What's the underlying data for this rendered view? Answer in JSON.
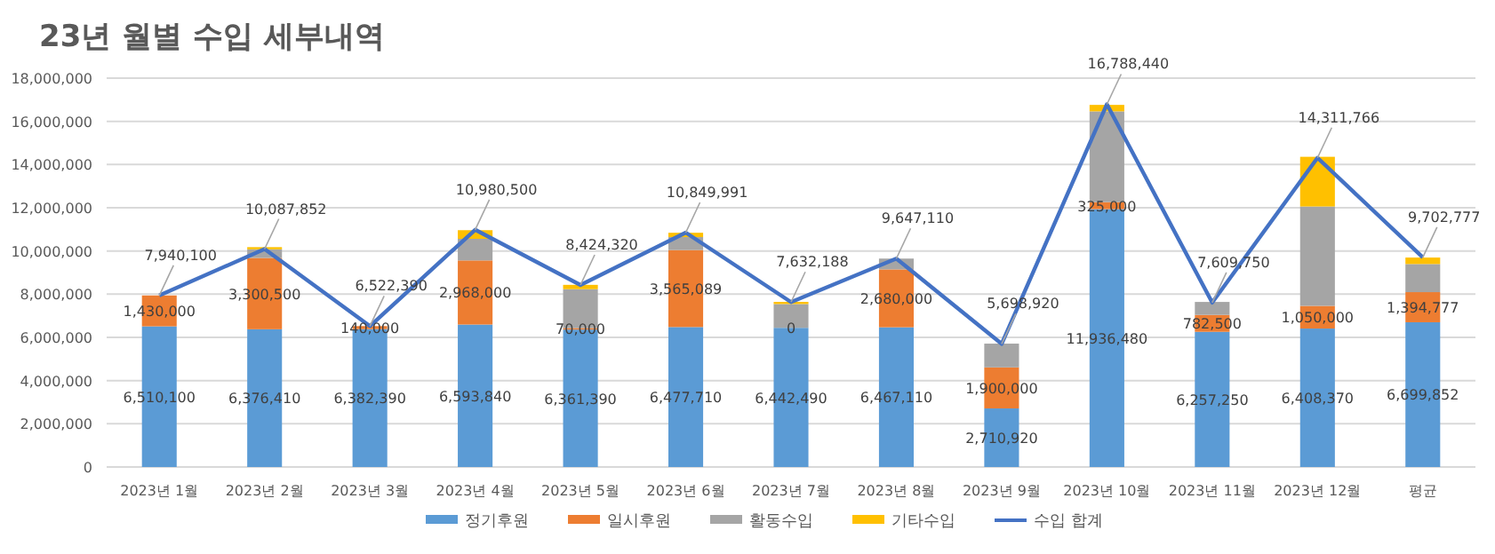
{
  "chart_data": {
    "type": "bar",
    "stacked": true,
    "title": "23년 월별 수입 세부내역",
    "categories": [
      "2023년 1월",
      "2023년 2월",
      "2023년 3월",
      "2023년 4월",
      "2023년 5월",
      "2023년 6월",
      "2023년 7월",
      "2023년 8월",
      "2023년 9월",
      "2023년 10월",
      "2023년 11월",
      "2023년 12월",
      "평균"
    ],
    "series": [
      {
        "name": "정기후원",
        "color": "#5b9bd5",
        "values": [
          6510100,
          6376410,
          6382390,
          6593840,
          6361390,
          6477710,
          6442490,
          6467110,
          2710920,
          11936480,
          6257250,
          6408370,
          6699852
        ],
        "value_labels": [
          "6,510,100",
          "6,376,410",
          "6,382,390",
          "6,593,840",
          "6,361,390",
          "6,477,710",
          "6,442,490",
          "6,467,110",
          "2,710,920",
          "11,936,480",
          "6,257,250",
          "6,408,370",
          "6,699,852"
        ]
      },
      {
        "name": "일시후원",
        "color": "#ed7d31",
        "values": [
          1430000,
          3300500,
          140000,
          2968000,
          70000,
          3565089,
          0,
          2680000,
          1900000,
          325000,
          782500,
          1050000,
          1394777
        ],
        "value_labels": [
          "1,430,000",
          "3,300,500",
          "140,000",
          "2,968,000",
          "70,000",
          "3,565,089",
          "0",
          "2,680,000",
          "1,900,000",
          "325,000",
          "782,500",
          "1,050,000",
          "1,394,777"
        ]
      },
      {
        "name": "활동수입",
        "color": "#a5a5a5",
        "values": [
          0,
          400000,
          0,
          1000000,
          1800000,
          600000,
          1100000,
          500000,
          1100000,
          4200000,
          600000,
          4600000,
          1300000
        ]
      },
      {
        "name": "기타수입",
        "color": "#ffc000",
        "values": [
          0,
          100000,
          0,
          400000,
          200000,
          200000,
          100000,
          0,
          0,
          300000,
          0,
          2300000,
          300000
        ]
      },
      {
        "name": "수입 합계",
        "type": "line",
        "color": "#4472c4",
        "values": [
          7940100,
          10087852,
          6522390,
          10980500,
          8424320,
          10849991,
          7632188,
          9647110,
          5698920,
          16788440,
          7609750,
          14311766,
          9702777
        ],
        "value_labels": [
          "7,940,100",
          "10,087,852",
          "6,522,390",
          "10,980,500",
          "8,424,320",
          "10,849,991",
          "7,632,188",
          "9,647,110",
          "5,698,920",
          "16,788,440",
          "7,609,750",
          "14,311,766",
          "9,702,777"
        ]
      }
    ],
    "ylim": [
      0,
      18000000
    ],
    "yticks": [
      {
        "value": 0,
        "label": "0"
      },
      {
        "value": 2000000,
        "label": "2,000,000"
      },
      {
        "value": 4000000,
        "label": "4,000,000"
      },
      {
        "value": 6000000,
        "label": "6,000,000"
      },
      {
        "value": 8000000,
        "label": "8,000,000"
      },
      {
        "value": 10000000,
        "label": "10,000,000"
      },
      {
        "value": 12000000,
        "label": "12,000,000"
      },
      {
        "value": 14000000,
        "label": "14,000,000"
      },
      {
        "value": 16000000,
        "label": "16,000,000"
      },
      {
        "value": 18000000,
        "label": "18,000,000"
      }
    ],
    "grid": "y",
    "legend": "bottom",
    "marker": "none"
  }
}
